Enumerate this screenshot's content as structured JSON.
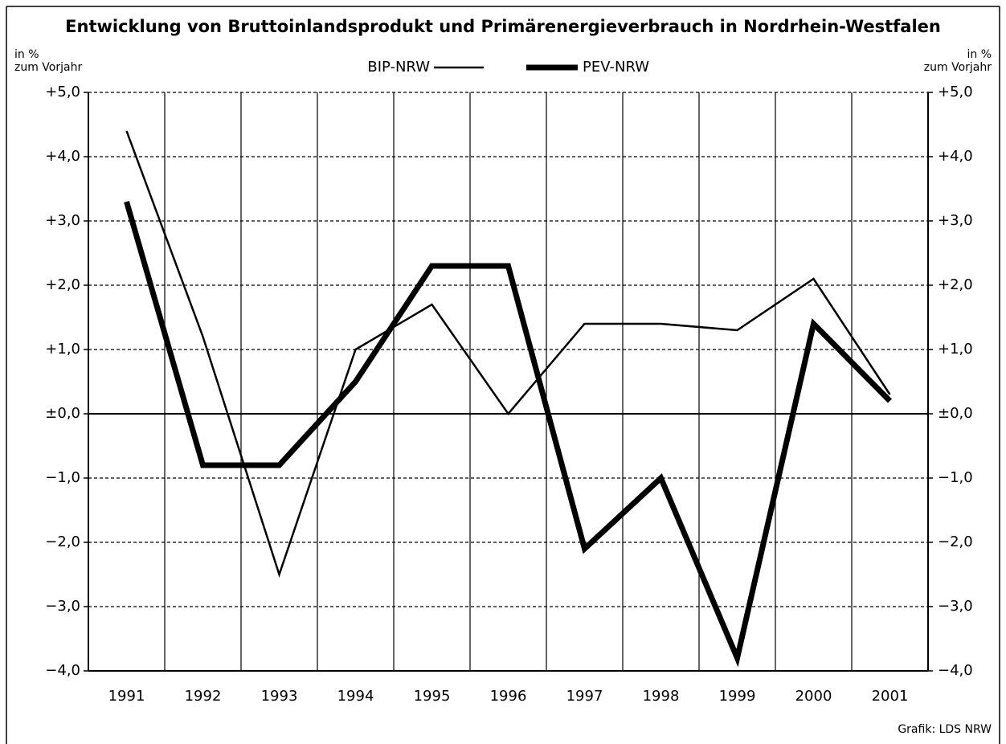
{
  "chart_data": {
    "type": "line",
    "title": "Entwicklung von Bruttoinlandsprodukt und Primärenergieverbrauch in Nordrhein-Westfalen",
    "ylabel_lines": [
      "in %",
      "zum Vorjahr"
    ],
    "y2label_lines": [
      "in %",
      "zum Vorjahr"
    ],
    "source": "Grafik: LDS NRW",
    "categories": [
      "1991",
      "1992",
      "1993",
      "1994",
      "1995",
      "1996",
      "1997",
      "1998",
      "1999",
      "2000",
      "2001"
    ],
    "series": [
      {
        "name": "BIP-NRW",
        "color": "#000000",
        "width": 2.5,
        "values": [
          4.4,
          1.2,
          -2.5,
          1.0,
          1.7,
          0.0,
          1.4,
          1.4,
          1.3,
          2.1,
          0.3
        ]
      },
      {
        "name": "PEV-NRW",
        "color": "#000000",
        "width": 7,
        "values": [
          3.3,
          -0.8,
          -0.8,
          0.5,
          2.3,
          2.3,
          -2.1,
          -1.0,
          -3.8,
          1.4,
          0.2
        ]
      }
    ],
    "ylim": [
      -4,
      5
    ],
    "yticks": [
      {
        "value": 5,
        "label": "+5,0"
      },
      {
        "value": 4,
        "label": "+4,0"
      },
      {
        "value": 3,
        "label": "+3,0"
      },
      {
        "value": 2,
        "label": "+2,0"
      },
      {
        "value": 1,
        "label": "+1,0"
      },
      {
        "value": 0,
        "label": "±0,0"
      },
      {
        "value": -1,
        "label": "−1,0"
      },
      {
        "value": -2,
        "label": "−2,0"
      },
      {
        "value": -3,
        "label": "−3,0"
      },
      {
        "value": -4,
        "label": "−4,0"
      }
    ],
    "grid": true
  }
}
